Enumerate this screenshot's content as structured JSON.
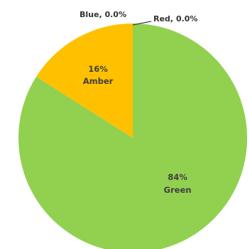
{
  "chart_data": {
    "type": "pie",
    "title": "",
    "slices": [
      {
        "name": "Green",
        "value": 84,
        "label": "84%",
        "color": "#92d050"
      },
      {
        "name": "Blue",
        "value": 0.0,
        "label": "Blue, 0.0%",
        "color": "#4472c4"
      },
      {
        "name": "Red",
        "value": 0.0,
        "label": "Red, 0.0%",
        "color": "#ff0000"
      },
      {
        "name": "Amber",
        "value": 16,
        "label": "16%",
        "color": "#ffc000"
      }
    ],
    "legend": "none"
  }
}
